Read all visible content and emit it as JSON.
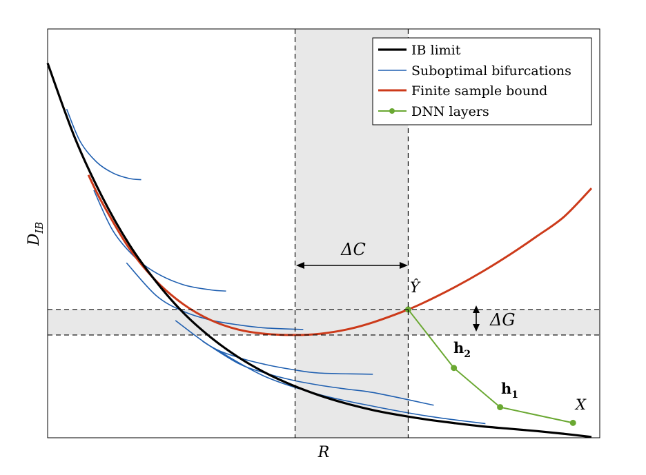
{
  "chart_data": {
    "type": "line",
    "xlabel": "R",
    "ylabel": "D_IB",
    "ylabel_main": "D",
    "ylabel_sub": "IB",
    "legend": {
      "position": "top-right",
      "entries": [
        {
          "label": "IB limit",
          "color": "#000000",
          "style": "thick-line"
        },
        {
          "label": "Suboptimal bifurcations",
          "color": "#1f5fb0",
          "style": "thin-line"
        },
        {
          "label": "Finite sample bound",
          "color": "#cc3a1a",
          "style": "thick-line"
        },
        {
          "label": "DNN layers",
          "color": "#6aa832",
          "style": "line-marker"
        }
      ]
    },
    "annotations": {
      "delta_c": "ΔC",
      "delta_g": "ΔG",
      "y_hat": "Ŷ",
      "h2_main": "h",
      "h2_sub": "2",
      "h1_main": "h",
      "h1_sub": "1",
      "x_label": "X"
    },
    "colors": {
      "ib": "#000000",
      "bifurcation": "#1f5fb0",
      "finite": "#cc3a1a",
      "dnn": "#6aa832",
      "shade": "#e8e8e8"
    },
    "xlim": [
      0,
      1
    ],
    "ylim": [
      0,
      1
    ],
    "shaded_band_x": [
      0.455,
      0.663
    ],
    "shaded_band_y": [
      0.262,
      0.327
    ],
    "ib_curve": {
      "x": [
        0,
        0.05,
        0.1,
        0.15,
        0.2,
        0.25,
        0.3,
        0.35,
        0.4,
        0.45,
        0.5,
        0.55,
        0.6,
        0.65,
        0.7,
        0.75,
        0.8,
        0.85,
        0.9,
        0.95,
        1.0
      ],
      "y": [
        0.955,
        0.765,
        0.615,
        0.493,
        0.397,
        0.318,
        0.256,
        0.206,
        0.166,
        0.134,
        0.108,
        0.087,
        0.07,
        0.057,
        0.046,
        0.037,
        0.029,
        0.023,
        0.017,
        0.01,
        0.002
      ]
    },
    "finite_curve": {
      "x": [
        0.075,
        0.1,
        0.15,
        0.2,
        0.25,
        0.3,
        0.35,
        0.4,
        0.455,
        0.5,
        0.55,
        0.6,
        0.663,
        0.7,
        0.75,
        0.8,
        0.85,
        0.9,
        0.95,
        1.0
      ],
      "y": [
        0.67,
        0.6,
        0.483,
        0.399,
        0.34,
        0.3,
        0.276,
        0.265,
        0.262,
        0.265,
        0.276,
        0.295,
        0.327,
        0.35,
        0.385,
        0.424,
        0.467,
        0.514,
        0.564,
        0.636
      ]
    },
    "bifurcations": [
      {
        "x": [
          0.035,
          0.06,
          0.09,
          0.12,
          0.15,
          0.172
        ],
        "y": [
          0.838,
          0.755,
          0.703,
          0.675,
          0.661,
          0.658
        ]
      },
      {
        "x": [
          0.085,
          0.12,
          0.16,
          0.2,
          0.25,
          0.3,
          0.328
        ],
        "y": [
          0.631,
          0.528,
          0.461,
          0.42,
          0.39,
          0.377,
          0.374
        ]
      },
      {
        "x": [
          0.145,
          0.2,
          0.25,
          0.3,
          0.35,
          0.4,
          0.47
        ],
        "y": [
          0.446,
          0.362,
          0.322,
          0.3,
          0.288,
          0.28,
          0.276
        ]
      },
      {
        "x": [
          0.235,
          0.3,
          0.35,
          0.4,
          0.45,
          0.5,
          0.598
        ],
        "y": [
          0.299,
          0.233,
          0.205,
          0.187,
          0.174,
          0.165,
          0.162
        ]
      },
      {
        "x": [
          0.285,
          0.35,
          0.4,
          0.45,
          0.5,
          0.55,
          0.6,
          0.71
        ],
        "y": [
          0.246,
          0.19,
          0.165,
          0.147,
          0.134,
          0.124,
          0.115,
          0.083
        ]
      },
      {
        "x": [
          0.315,
          0.4,
          0.5,
          0.6,
          0.7,
          0.805
        ],
        "y": [
          0.221,
          0.156,
          0.11,
          0.08,
          0.055,
          0.036
        ]
      }
    ],
    "dnn_layers": {
      "x": [
        0.663,
        0.747,
        0.832,
        0.966
      ],
      "y": [
        0.327,
        0.178,
        0.078,
        0.038
      ]
    }
  }
}
